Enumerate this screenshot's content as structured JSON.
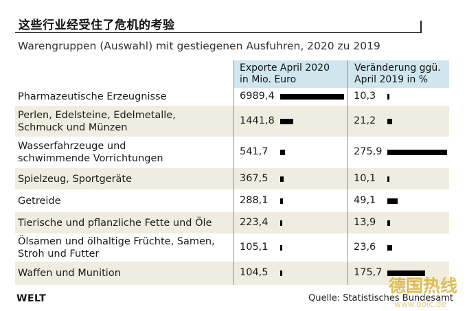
{
  "header": {
    "headline": "这些行业经受住了危机的考验",
    "subtitle": "Warengruppen (Auswahl) mit gestiegenen Ausfuhren, 2020 zu 2019"
  },
  "chart_data": {
    "type": "table",
    "columns": [
      {
        "line1": "Exporte April 2020",
        "line2": "in Mio. Euro"
      },
      {
        "line1": "Veränderung ggü.",
        "line2": "April 2019 in %"
      }
    ],
    "rows": [
      {
        "label": [
          "Pharmazeutische Erzeugnisse"
        ],
        "exports_label": "6989,4",
        "change_label": "10,3",
        "exports": 6989.4,
        "change": 10.3
      },
      {
        "label": [
          "Perlen, Edelsteine, Edelmetalle,",
          "Schmuck und Münzen"
        ],
        "exports_label": "1441,8",
        "change_label": "21,2",
        "exports": 1441.8,
        "change": 21.2
      },
      {
        "label": [
          "Wasserfahrzeuge und",
          "schwimmende Vorrichtungen"
        ],
        "exports_label": "541,7",
        "change_label": "275,9",
        "exports": 541.7,
        "change": 275.9
      },
      {
        "label": [
          "Spielzeug, Sportgeräte"
        ],
        "exports_label": "367,5",
        "change_label": "10,1",
        "exports": 367.5,
        "change": 10.1
      },
      {
        "label": [
          "Getreide"
        ],
        "exports_label": "288,1",
        "change_label": "49,1",
        "exports": 288.1,
        "change": 49.1
      },
      {
        "label": [
          "Tierische und pflanzliche Fette und Öle"
        ],
        "exports_label": "223,4",
        "change_label": "13,9",
        "exports": 223.4,
        "change": 13.9
      },
      {
        "label": [
          "Ölsamen und ölhaltige Früchte, Samen,",
          "Stroh und Futter"
        ],
        "exports_label": "105,1",
        "change_label": "23,6",
        "exports": 105.1,
        "change": 23.6
      },
      {
        "label": [
          "Waffen und Munition"
        ],
        "exports_label": "104,5",
        "change_label": "175,7",
        "exports": 104.5,
        "change": 175.7
      }
    ]
  },
  "footer": {
    "logo": "WELT",
    "source": "Quelle: Statistisches Bundesamt",
    "watermark_line1": "德国热线",
    "watermark_line2": "www.dolc.de"
  },
  "colors": {
    "header_fill": "#cfe6ee",
    "row_shade": "#efede0",
    "bar": "#000000",
    "watermark": "#c9a326"
  }
}
